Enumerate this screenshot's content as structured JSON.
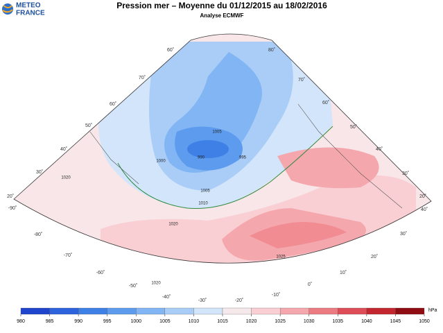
{
  "header": {
    "logo_line1": "METEO",
    "logo_line2": "FRANCE",
    "title": "Pression mer – Moyenne du 01/12/2015 au 18/02/2016",
    "subtitle": "Analyse ECMWF"
  },
  "colorbar": {
    "unit": "hPa",
    "ticks": [
      980,
      985,
      990,
      995,
      1000,
      1005,
      1010,
      1015,
      1020,
      1025,
      1030,
      1035,
      1040,
      1045,
      1050
    ],
    "colors": [
      "#1e45cc",
      "#2d63dc",
      "#3f80e6",
      "#5d9bee",
      "#82b5f3",
      "#a9cdf7",
      "#d2e5fa",
      "#f6e9ec",
      "#f9cfd3",
      "#f4a7ad",
      "#ec7a81",
      "#de4d57",
      "#c4262f",
      "#8f0c12"
    ]
  },
  "map": {
    "graticule_labels": [
      "60˚",
      "80˚",
      "70˚",
      "60˚",
      "50˚",
      "40˚",
      "30˚",
      "20˚",
      "-90˚",
      "70˚",
      "60˚",
      "50˚",
      "40˚",
      "30˚",
      "20˚",
      "-80˚",
      "-70˚",
      "-60˚",
      "-50˚",
      "-40˚",
      "-30˚",
      "-20˚",
      "-10˚",
      "0˚",
      "10˚",
      "20˚",
      "30˚",
      "40˚"
    ],
    "contour_labels": [
      "1005",
      "990",
      "995",
      "1000",
      "1005",
      "1010",
      "1020",
      "1025",
      "1020",
      "1020"
    ]
  }
}
